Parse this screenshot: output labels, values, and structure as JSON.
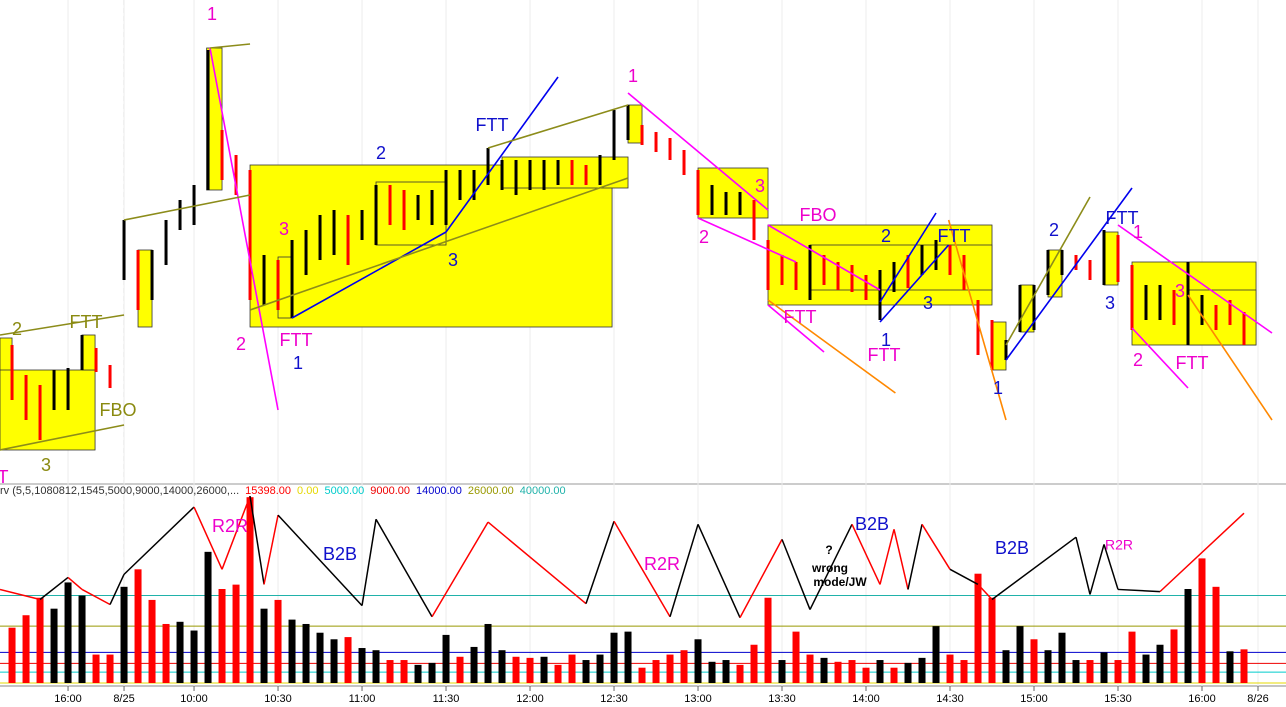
{
  "chart_data": {
    "type": "ohlc",
    "xlim": [
      -0.86,
      91
    ],
    "xticks": [
      {
        "value": 4,
        "label": "16:00"
      },
      {
        "value": 8,
        "label": "8/25"
      },
      {
        "value": 13,
        "label": "10:00"
      },
      {
        "value": 19,
        "label": "10:30"
      },
      {
        "value": 25,
        "label": "11:00"
      },
      {
        "value": 31,
        "label": "11:30"
      },
      {
        "value": 37,
        "label": "12:00"
      },
      {
        "value": 43,
        "label": "12:30"
      },
      {
        "value": 49,
        "label": "13:00"
      },
      {
        "value": 55,
        "label": "13:30"
      },
      {
        "value": 61,
        "label": "14:00"
      },
      {
        "value": 67,
        "label": "14:30"
      },
      {
        "value": 73,
        "label": "15:00"
      },
      {
        "value": 79,
        "label": "15:30"
      },
      {
        "value": 85,
        "label": "16:00"
      },
      {
        "value": 89,
        "label": "8/26"
      }
    ],
    "price": {
      "ylim": [
        0,
        480
      ],
      "high": [
        135,
        105,
        95,
        110,
        112,
        145,
        132,
        115,
        260,
        230,
        230,
        260,
        280,
        295,
        430,
        350,
        325,
        310,
        225,
        220,
        240,
        250,
        265,
        270,
        265,
        270,
        295,
        295,
        290,
        285,
        290,
        310,
        310,
        310,
        332,
        320,
        320,
        320,
        320,
        320,
        320,
        315,
        325,
        370,
        375,
        355,
        348,
        342,
        330,
        310,
        295,
        288,
        288,
        280,
        240,
        225,
        218,
        235,
        225,
        218,
        215,
        205,
        210,
        218,
        225,
        235,
        240,
        235,
        225,
        180,
        160,
        140,
        195,
        195,
        230,
        230,
        225,
        220,
        250,
        245,
        215,
        195,
        195,
        190,
        218,
        185,
        175,
        180,
        168
      ],
      "low": [
        80,
        60,
        40,
        70,
        70,
        110,
        108,
        92,
        200,
        170,
        180,
        215,
        250,
        255,
        290,
        300,
        285,
        180,
        175,
        170,
        162,
        205,
        220,
        225,
        215,
        240,
        235,
        255,
        250,
        260,
        255,
        255,
        280,
        280,
        295,
        290,
        285,
        290,
        290,
        295,
        295,
        295,
        295,
        320,
        340,
        335,
        328,
        320,
        305,
        265,
        265,
        265,
        265,
        240,
        190,
        195,
        190,
        180,
        195,
        190,
        188,
        180,
        160,
        188,
        192,
        205,
        210,
        205,
        190,
        125,
        110,
        120,
        148,
        150,
        185,
        205,
        210,
        200,
        195,
        198,
        150,
        160,
        160,
        155,
        135,
        155,
        150,
        155,
        135
      ],
      "colors": [
        "#f00",
        "#f00",
        "#f00",
        "#000",
        "#000",
        "#000",
        "#f00",
        "#f00",
        "#000",
        "#f00",
        "#000",
        "#000",
        "#000",
        "#000",
        "#000",
        "#f00",
        "#f00",
        "#f00",
        "#000",
        "#f00",
        "#000",
        "#000",
        "#000",
        "#000",
        "#f00",
        "#000",
        "#000",
        "#f00",
        "#f00",
        "#000",
        "#000",
        "#000",
        "#000",
        "#000",
        "#000",
        "#000",
        "#000",
        "#000",
        "#000",
        "#000",
        "#f00",
        "#f00",
        "#000",
        "#000",
        "#000",
        "#f00",
        "#f00",
        "#f00",
        "#f00",
        "#f00",
        "#000",
        "#000",
        "#000",
        "#f00",
        "#f00",
        "#f00",
        "#f00",
        "#000",
        "#f00",
        "#f00",
        "#f00",
        "#f00",
        "#000",
        "#000",
        "#f00",
        "#000",
        "#000",
        "#f00",
        "#f00",
        "#f00",
        "#f00",
        "#000",
        "#000",
        "#000",
        "#000",
        "#000",
        "#f00",
        "#f00",
        "#000",
        "#f00",
        "#f00",
        "#000",
        "#000",
        "#f00",
        "#000",
        "#000",
        "#f00",
        "#f00",
        "#f00"
      ]
    },
    "box_color": "#ffff00",
    "boxes": [
      {
        "x0": -0.86,
        "x1": 0,
        "y0": 85,
        "y1": 142
      },
      {
        "x0": -0.86,
        "x1": 5.93,
        "y0": 30,
        "y1": 110
      },
      {
        "x0": 5,
        "x1": 5.93,
        "y0": 110,
        "y1": 145
      },
      {
        "x0": 9,
        "x1": 10,
        "y0": 153,
        "y1": 230
      },
      {
        "x0": 13.9,
        "x1": 15,
        "y0": 290,
        "y1": 432
      },
      {
        "x0": 17,
        "x1": 42.86,
        "y0": 153,
        "y1": 315
      },
      {
        "x0": 19,
        "x1": 20,
        "y0": 162,
        "y1": 223
      },
      {
        "x0": 26,
        "x1": 31,
        "y0": 235,
        "y1": 298
      },
      {
        "x0": 35,
        "x1": 44,
        "y0": 292,
        "y1": 323
      },
      {
        "x0": 44,
        "x1": 45,
        "y0": 337,
        "y1": 375
      },
      {
        "x0": 49,
        "x1": 54,
        "y0": 262,
        "y1": 312
      },
      {
        "x0": 54,
        "x1": 70,
        "y0": 175,
        "y1": 255
      },
      {
        "x0": 57,
        "x1": 70,
        "y0": 190,
        "y1": 235
      },
      {
        "x0": 70,
        "x1": 71,
        "y0": 110,
        "y1": 158
      },
      {
        "x0": 72,
        "x1": 73,
        "y0": 148,
        "y1": 195
      },
      {
        "x0": 74,
        "x1": 75,
        "y0": 183,
        "y1": 230
      },
      {
        "x0": 78,
        "x1": 79,
        "y0": 195,
        "y1": 248
      },
      {
        "x0": 80,
        "x1": 88.86,
        "y0": 135,
        "y1": 218
      },
      {
        "x0": 84,
        "x1": 88.86,
        "y0": 135,
        "y1": 190
      }
    ],
    "trendlines": [
      {
        "color": "#ff00ff",
        "x": [
          14.14,
          19
        ],
        "y": [
          432,
          70
        ]
      },
      {
        "color": "#0000ee",
        "x": [
          20,
          31
        ],
        "y": [
          162,
          248
        ]
      },
      {
        "color": "#0000ee",
        "x": [
          31,
          39
        ],
        "y": [
          248,
          403
        ]
      },
      {
        "color": "#8c8c1a",
        "x": [
          17,
          44
        ],
        "y": [
          170,
          302
        ]
      },
      {
        "color": "#8c8c1a",
        "x": [
          34,
          44
        ],
        "y": [
          332,
          375
        ]
      },
      {
        "color": "#8c8c1a",
        "x": [
          14.14,
          17
        ],
        "y": [
          432,
          436
        ]
      },
      {
        "color": "#8c8c1a",
        "x": [
          8,
          17
        ],
        "y": [
          260,
          285
        ]
      },
      {
        "color": "#8c8c1a",
        "x": [
          -0.86,
          8
        ],
        "y": [
          145,
          165
        ]
      },
      {
        "color": "#8c8c1a",
        "x": [
          -0.86,
          8
        ],
        "y": [
          30,
          55
        ]
      },
      {
        "color": "#ff00ff",
        "x": [
          44,
          54
        ],
        "y": [
          387,
          270
        ]
      },
      {
        "color": "#ff00ff",
        "x": [
          49,
          56
        ],
        "y": [
          262,
          218
        ]
      },
      {
        "color": "#ff00ff",
        "x": [
          54,
          62
        ],
        "y": [
          255,
          190
        ]
      },
      {
        "color": "#ff00ff",
        "x": [
          54,
          58
        ],
        "y": [
          175,
          128
        ]
      },
      {
        "color": "#ff8800",
        "x": [
          54,
          63.1
        ],
        "y": [
          180,
          87
        ]
      },
      {
        "color": "#0000ee",
        "x": [
          62,
          66
        ],
        "y": [
          178,
          267
        ]
      },
      {
        "color": "#0000ee",
        "x": [
          62,
          66.9
        ],
        "y": [
          158,
          235
        ]
      },
      {
        "color": "#ff8800",
        "x": [
          66.9,
          71
        ],
        "y": [
          260,
          60
        ]
      },
      {
        "color": "#0000ee",
        "x": [
          71,
          80
        ],
        "y": [
          120,
          292
        ]
      },
      {
        "color": "#8c8c1a",
        "x": [
          71,
          77
        ],
        "y": [
          135,
          283
        ]
      },
      {
        "color": "#ff00ff",
        "x": [
          79,
          90
        ],
        "y": [
          255,
          147
        ]
      },
      {
        "color": "#ff8800",
        "x": [
          84,
          90
        ],
        "y": [
          185,
          60
        ]
      },
      {
        "color": "#ff00ff",
        "x": [
          80,
          84
        ],
        "y": [
          152,
          92
        ]
      }
    ],
    "annotations": [
      {
        "text": "1",
        "color": "#ee00cc"
      },
      {
        "text": "2",
        "color": "#8a8a10"
      },
      {
        "text": "FTT",
        "color": "#8a8a10"
      },
      {
        "text": "FBO",
        "color": "#8a8a10"
      },
      {
        "text": "3",
        "color": "#8a8a10"
      },
      {
        "text": "FTT",
        "color": "#ee00cc"
      },
      {
        "text": "3",
        "color": "#ee00cc"
      },
      {
        "text": "2",
        "color": "#ee00cc"
      },
      {
        "text": "FTT",
        "color": "#ee00cc"
      },
      {
        "text": "1",
        "color": "#1010cc"
      },
      {
        "text": "2",
        "color": "#1010cc"
      },
      {
        "text": "FTT",
        "color": "#1010cc"
      },
      {
        "text": "3",
        "color": "#1010cc"
      },
      {
        "text": "1",
        "color": "#ee00cc"
      },
      {
        "text": "3",
        "color": "#ee00cc"
      },
      {
        "text": "2",
        "color": "#ee00cc"
      },
      {
        "text": "FBO",
        "color": "#ee00cc"
      },
      {
        "text": "FTT",
        "color": "#ee00cc"
      },
      {
        "text": "FTT",
        "color": "#ee00cc"
      },
      {
        "text": "2",
        "color": "#1010cc"
      },
      {
        "text": "FTT",
        "color": "#1010cc"
      },
      {
        "text": "3",
        "color": "#1010cc"
      },
      {
        "text": "1",
        "color": "#1010cc"
      },
      {
        "text": "1",
        "color": "#1010cc"
      },
      {
        "text": "2",
        "color": "#1010cc"
      },
      {
        "text": "FTT",
        "color": "#1010cc"
      },
      {
        "text": "1",
        "color": "#ee00cc"
      },
      {
        "text": "3",
        "color": "#1010cc"
      },
      {
        "text": "3",
        "color": "#ee00cc"
      },
      {
        "text": "2",
        "color": "#ee00cc"
      },
      {
        "text": "FTT",
        "color": "#ee00cc"
      },
      {
        "text": "R2R",
        "color": "#ee00cc"
      },
      {
        "text": "B2B",
        "color": "#1010cc"
      },
      {
        "text": "R2R",
        "color": "#ee00cc"
      },
      {
        "text": "?",
        "color": "#000000"
      },
      {
        "text": "wrong",
        "color": "#000000"
      },
      {
        "text": "mode/JW",
        "color": "#000000"
      },
      {
        "text": "B2B",
        "color": "#1010cc"
      },
      {
        "text": "B2B",
        "color": "#1010cc"
      },
      {
        "text": "R2R",
        "color": "#ee00cc"
      }
    ],
    "volume": {
      "ylim": [
        0,
        86000
      ],
      "legend": "rv (5,5,1080812,1545,5000,9000,14000,26000,...",
      "last_label": "15398.00",
      "values": [
        25300,
        31000,
        39000,
        34000,
        46000,
        40000,
        13000,
        13000,
        44000,
        52000,
        38000,
        27000,
        28000,
        24000,
        60000,
        43000,
        45000,
        85000,
        34000,
        38000,
        29000,
        27000,
        23000,
        20000,
        21000,
        16000,
        15000,
        10500,
        10500,
        8300,
        9200,
        22000,
        12000,
        16500,
        27000,
        15000,
        12000,
        11500,
        12000,
        8300,
        13000,
        10500,
        13000,
        23000,
        23500,
        7000,
        10500,
        13000,
        15000,
        20000,
        9700,
        10500,
        8300,
        17500,
        39000,
        10500,
        23500,
        13000,
        11500,
        9700,
        10500,
        7000,
        10500,
        7000,
        9200,
        11500,
        26000,
        13000,
        10500,
        50000,
        39000,
        15000,
        26000,
        20000,
        15000,
        23000,
        10500,
        10500,
        14000,
        10500,
        23500,
        13000,
        17500,
        24500,
        43000,
        57000,
        44000,
        14500,
        15398
      ],
      "colors": [
        "#f00",
        "#f00",
        "#f00",
        "#000",
        "#000",
        "#000",
        "#f00",
        "#f00",
        "#000",
        "#f00",
        "#f00",
        "#f00",
        "#000",
        "#000",
        "#000",
        "#f00",
        "#f00",
        "#f00",
        "#000",
        "#f00",
        "#000",
        "#000",
        "#000",
        "#000",
        "#f00",
        "#000",
        "#000",
        "#f00",
        "#f00",
        "#000",
        "#000",
        "#000",
        "#f00",
        "#000",
        "#000",
        "#000",
        "#f00",
        "#f00",
        "#000",
        "#f00",
        "#f00",
        "#000",
        "#000",
        "#000",
        "#000",
        "#f00",
        "#f00",
        "#f00",
        "#f00",
        "#000",
        "#000",
        "#000",
        "#f00",
        "#f00",
        "#f00",
        "#000",
        "#f00",
        "#f00",
        "#000",
        "#f00",
        "#f00",
        "#f00",
        "#000",
        "#f00",
        "#000",
        "#000",
        "#000",
        "#f00",
        "#f00",
        "#f00",
        "#f00",
        "#000",
        "#000",
        "#f00",
        "#000",
        "#000",
        "#000",
        "#f00",
        "#000",
        "#f00",
        "#f00",
        "#000",
        "#000",
        "#f00",
        "#000",
        "#f00",
        "#f00",
        "#000",
        "#f00"
      ],
      "levels": [
        {
          "value": 0,
          "label": "0.00",
          "color": "#e6d800"
        },
        {
          "value": 5000,
          "label": "5000.00",
          "color": "#00cccc"
        },
        {
          "value": 9000,
          "label": "9000.00",
          "color": "#ee0000"
        },
        {
          "value": 14000,
          "label": "14000.00",
          "color": "#0000cc"
        },
        {
          "value": 26000,
          "label": "26000.00",
          "color": "#999900"
        },
        {
          "value": 40000,
          "label": "40000.00",
          "color": "#20b2aa"
        }
      ]
    },
    "wave": {
      "x": [
        -0.86,
        2,
        4,
        5,
        7,
        8,
        13,
        15,
        17,
        18,
        19,
        25,
        26,
        30,
        34,
        41,
        43,
        47,
        49,
        52,
        55,
        57,
        60,
        62,
        63,
        64,
        65,
        67,
        69,
        70,
        76,
        77,
        78,
        79,
        82,
        88
      ],
      "y": [
        42800,
        38200,
        48300,
        42800,
        35900,
        49700,
        80500,
        52000,
        85500,
        45100,
        76800,
        35400,
        74900,
        30300,
        73600,
        36300,
        74000,
        30300,
        72600,
        29900,
        65700,
        33600,
        72600,
        45100,
        70300,
        42800,
        72600,
        52000,
        45100,
        38200,
        66700,
        40500,
        63400,
        42800,
        41800,
        77700
      ],
      "segment_colors": [
        "#f00",
        "#000",
        "#f00",
        "#f00",
        "#000",
        "#000",
        "#f00",
        "#f00",
        "#000",
        "#f00",
        "#000",
        "#000",
        "#000",
        "#f00",
        "#f00",
        "#000",
        "#f00",
        "#000",
        "#000",
        "#f00",
        "#000",
        "#000",
        "#f00",
        "#f00",
        "#f00",
        "#000",
        "#f00",
        "#000",
        "#f00",
        "#000",
        "#000",
        "#000",
        "#000",
        "#000",
        "#f00"
      ]
    }
  }
}
